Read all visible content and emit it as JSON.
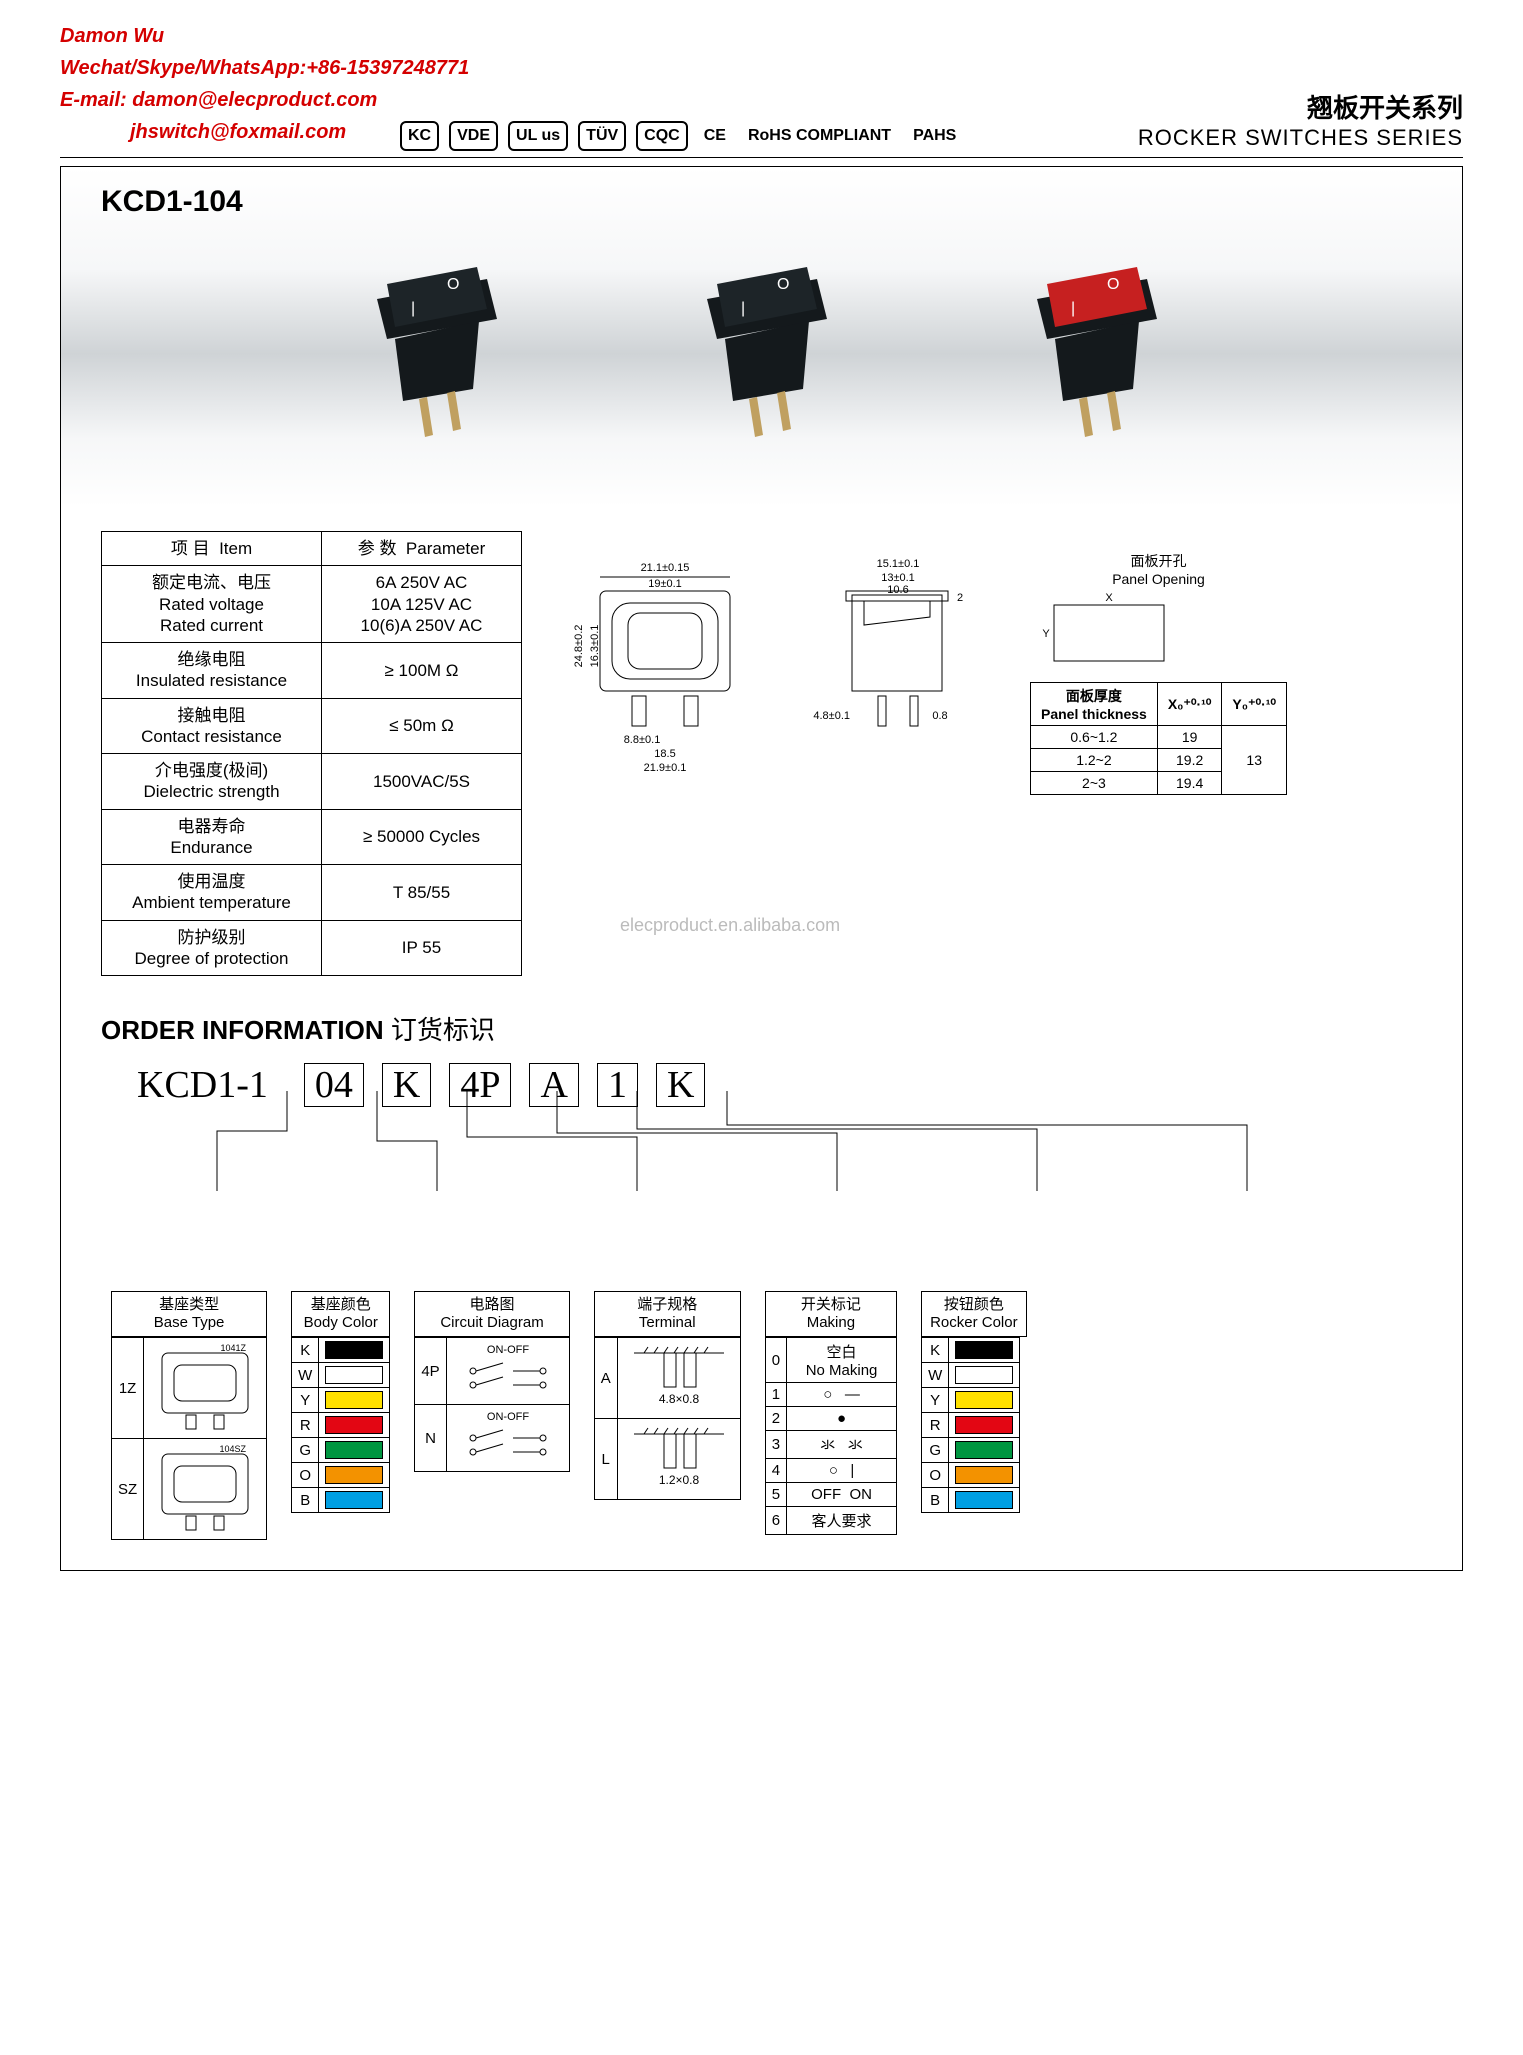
{
  "contact": {
    "name": "Damon Wu",
    "line2": "Wechat/Skype/WhatsApp:+86-15397248771",
    "line3": "E-mail: damon@elecproduct.com",
    "line4": "jhswitch@foxmail.com"
  },
  "cert_badges": [
    "KC",
    "VDE",
    "UL us",
    "TÜV",
    "CQC",
    "CE",
    "RoHS COMPLIANT",
    "PAHS"
  ],
  "series": {
    "cn": "翘板开关系列",
    "en": "ROCKER SWITCHES SERIES"
  },
  "product_code": "KCD1-104",
  "switch_colors": {
    "s1_top": "#1d2428",
    "s2_top": "#1d2428",
    "s3_top": "#c62020",
    "body": "#14191c",
    "pin": "#c0a060"
  },
  "spec_table": {
    "headers": {
      "item_cn": "项 目",
      "item_en": "Item",
      "param_cn": "参 数",
      "param_en": "Parameter"
    },
    "rows": [
      {
        "item_cn": "额定电流、电压",
        "item_en1": "Rated voltage",
        "item_en2": "Rated current",
        "param1": "6A 250V AC",
        "param2": "10A 125V AC",
        "param3": "10(6)A 250V AC"
      },
      {
        "item_cn": "绝缘电阻",
        "item_en1": "Insulated resistance",
        "param1": "≥ 100M Ω"
      },
      {
        "item_cn": "接触电阻",
        "item_en1": "Contact resistance",
        "param1": "≤ 50m Ω"
      },
      {
        "item_cn": "介电强度(极间)",
        "item_en1": "Dielectric strength",
        "param1": "1500VAC/5S"
      },
      {
        "item_cn": "电器寿命",
        "item_en1": "Endurance",
        "param1": "≥ 50000 Cycles"
      },
      {
        "item_cn": "使用温度",
        "item_en1": "Ambient temperature",
        "param1": "T 85/55"
      },
      {
        "item_cn": "防护级别",
        "item_en1": "Degree of protection",
        "param1": "IP 55"
      }
    ]
  },
  "dimensions": {
    "front": {
      "w": "21.1±0.15",
      "inner_w": "19±0.1",
      "h": "24.8±0.2",
      "inner_h": "16.3±0.1",
      "pin_pitch": "8.8±0.1",
      "pin_pitch2": "18.5",
      "overall": "21.9±0.1"
    },
    "side": {
      "w": "15.1±0.1",
      "inner_w": "13±0.1",
      "slot": "10.6",
      "flange": "2",
      "pin_h": "4.8±0.1",
      "pin_t": "0.8"
    },
    "panel": {
      "title_cn": "面板开孔",
      "title_en": "Panel Opening",
      "thick_cn": "面板厚度",
      "thick_en": "Panel thickness",
      "xcol": "X₀⁺⁰·¹⁰",
      "ycol": "Y₀⁺⁰·¹⁰",
      "rows": [
        {
          "t": "0.6~1.2",
          "x": "19",
          "y": "13"
        },
        {
          "t": "1.2~2",
          "x": "19.2",
          "y": ""
        },
        {
          "t": "2~3",
          "x": "19.4",
          "y": ""
        }
      ]
    }
  },
  "watermark": "elecproduct.en.alibaba.com",
  "order": {
    "title_en": "ORDER INFORMATION",
    "title_cn": "订货标识",
    "prefix": "KCD1-1",
    "parts": [
      "04",
      "K",
      "4P",
      "A",
      "1",
      "K"
    ]
  },
  "legends": {
    "base_type": {
      "head_cn": "基座类型",
      "head_en": "Base Type",
      "rows": [
        {
          "k": "1Z",
          "v": "1041Z"
        },
        {
          "k": "SZ",
          "v": "104SZ"
        }
      ]
    },
    "body_color": {
      "head_cn": "基座颜色",
      "head_en": "Body Color",
      "rows": [
        {
          "k": "K",
          "c": "#000000"
        },
        {
          "k": "W",
          "c": "#ffffff"
        },
        {
          "k": "Y",
          "c": "#ffe100"
        },
        {
          "k": "R",
          "c": "#e30613"
        },
        {
          "k": "G",
          "c": "#009640"
        },
        {
          "k": "O",
          "c": "#f39200"
        },
        {
          "k": "B",
          "c": "#009fe3"
        }
      ]
    },
    "circuit": {
      "head_cn": "电路图",
      "head_en": "Circuit Diagram",
      "rows": [
        {
          "k": "4P",
          "v": "ON-OFF"
        },
        {
          "k": "N",
          "v": "ON-OFF"
        }
      ]
    },
    "terminal": {
      "head_cn": "端子规格",
      "head_en": "Terminal",
      "rows": [
        {
          "k": "A",
          "v": "4.8×0.8"
        },
        {
          "k": "L",
          "v": "1.2×0.8"
        }
      ]
    },
    "marking": {
      "head_cn": "开关标记",
      "head_en": "Making",
      "rows": [
        {
          "k": "0",
          "v": "空白\nNo Making"
        },
        {
          "k": "1",
          "v": "○   —"
        },
        {
          "k": "2",
          "v": "●"
        },
        {
          "k": "3",
          "v": "氺   氺"
        },
        {
          "k": "4",
          "v": "○   |"
        },
        {
          "k": "5",
          "v": "OFF  ON"
        },
        {
          "k": "6",
          "v": "客人要求"
        }
      ]
    },
    "rocker_color": {
      "head_cn": "按钮颜色",
      "head_en": "Rocker Color",
      "rows": [
        {
          "k": "K",
          "c": "#000000"
        },
        {
          "k": "W",
          "c": "#ffffff"
        },
        {
          "k": "Y",
          "c": "#ffe100"
        },
        {
          "k": "R",
          "c": "#e30613"
        },
        {
          "k": "G",
          "c": "#009640"
        },
        {
          "k": "O",
          "c": "#f39200"
        },
        {
          "k": "B",
          "c": "#009fe3"
        }
      ]
    }
  }
}
